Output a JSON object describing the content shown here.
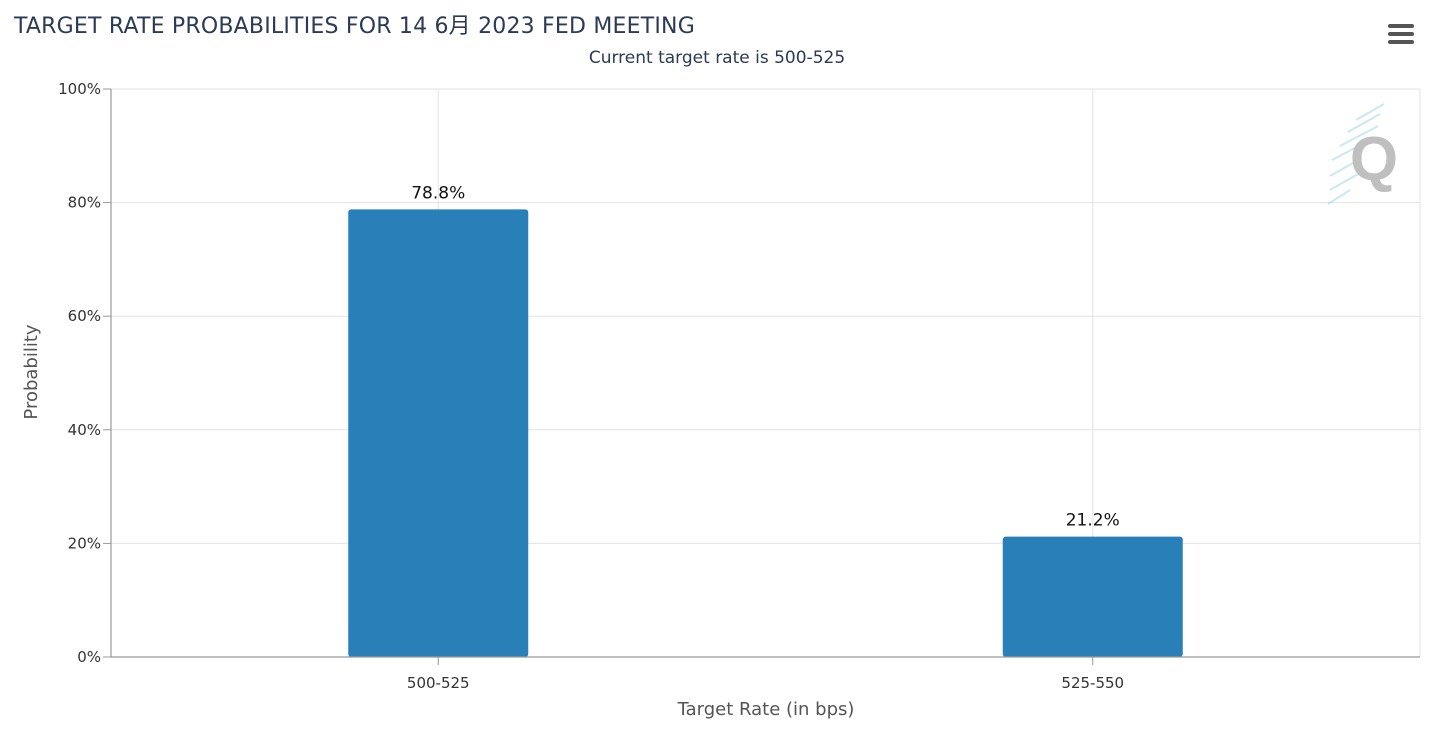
{
  "header": {
    "title": "TARGET RATE PROBABILITIES FOR 14 6月 2023 FED MEETING",
    "subtitle": "Current target rate is 500-525",
    "menu_icon": "hamburger-menu-icon"
  },
  "watermark": {
    "icon": "q-logo-icon",
    "text": "Q"
  },
  "chart_data": {
    "type": "bar",
    "title": "TARGET RATE PROBABILITIES FOR 14 6月 2023 FED MEETING",
    "subtitle": "Current target rate is 500-525",
    "categories": [
      "500-525",
      "525-550"
    ],
    "values": [
      78.8,
      21.2
    ],
    "data_labels": [
      "78.8%",
      "21.2%"
    ],
    "xlabel": "Target Rate (in bps)",
    "ylabel": "Probability",
    "ylim": [
      0,
      100
    ],
    "yticks": [
      0,
      20,
      40,
      60,
      80,
      100
    ],
    "ytick_labels": [
      "0%",
      "20%",
      "40%",
      "60%",
      "80%",
      "100%"
    ],
    "grid": true,
    "bar_color": "#2980b9"
  }
}
